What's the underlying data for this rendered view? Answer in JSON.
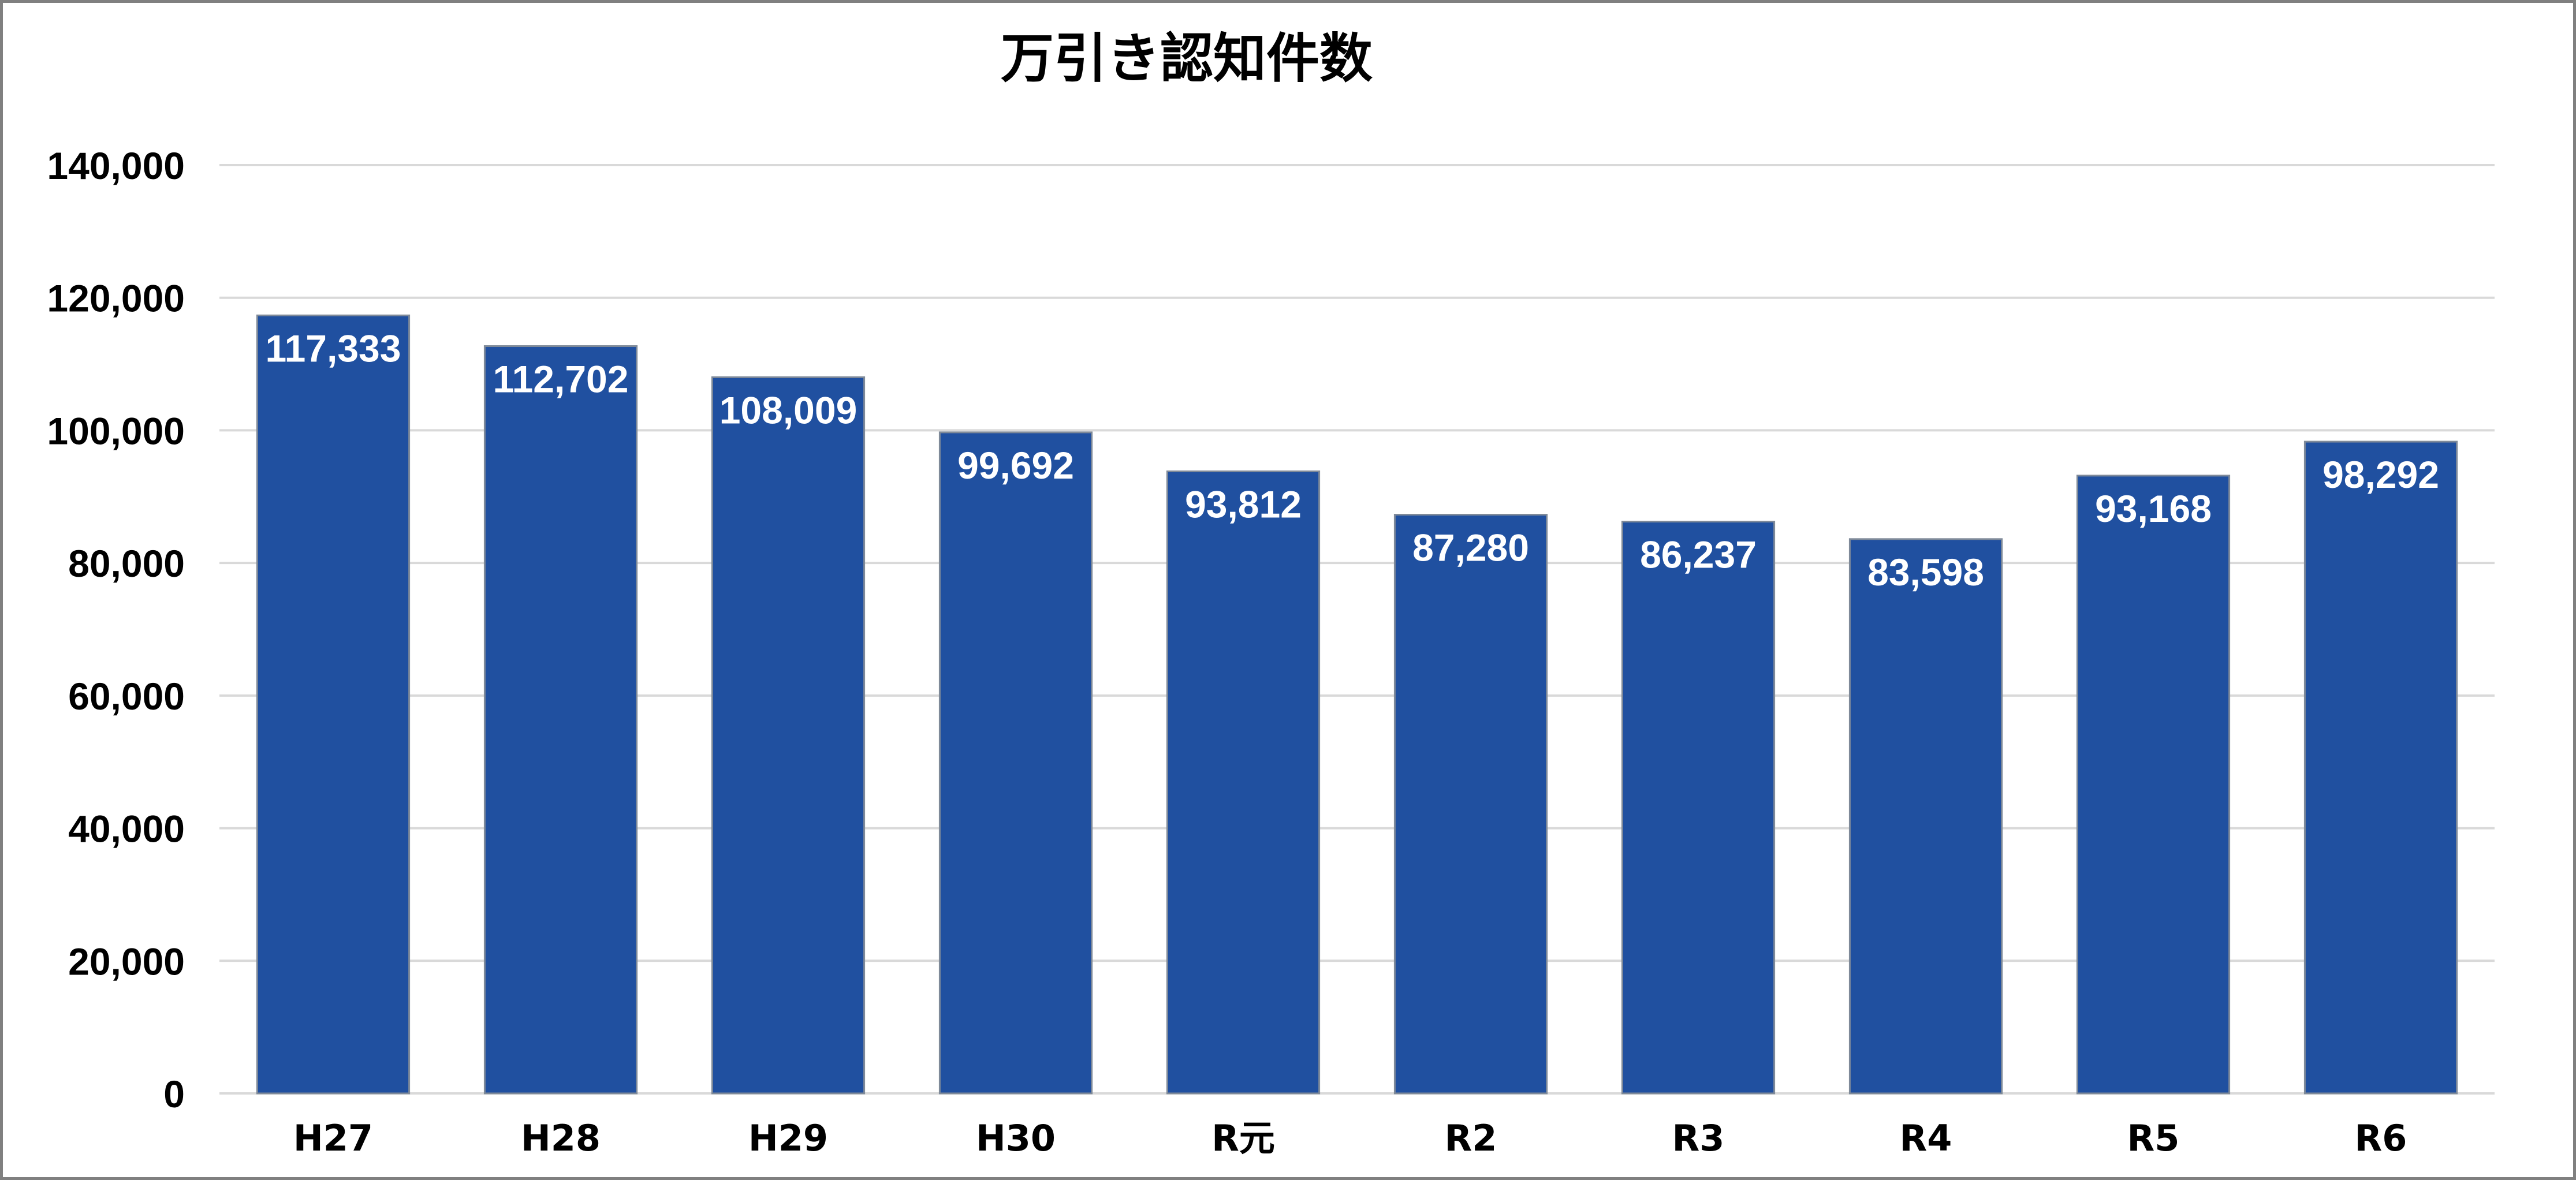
{
  "chart_data": {
    "type": "bar",
    "title": "万引き認知件数",
    "categories": [
      "H27",
      "H28",
      "H29",
      "H30",
      "R元",
      "R2",
      "R3",
      "R4",
      "R5",
      "R6"
    ],
    "values": [
      117333,
      112702,
      108009,
      99692,
      93812,
      87280,
      86237,
      83598,
      93168,
      98292
    ],
    "data_labels": [
      "117,333",
      "112,702",
      "108,009",
      "99,692",
      "93,812",
      "87,280",
      "86,237",
      "83,598",
      "93,168",
      "98,292"
    ],
    "ylim": [
      0,
      140000
    ],
    "yticks": [
      0,
      20000,
      40000,
      60000,
      80000,
      100000,
      120000,
      140000
    ],
    "ytick_labels": [
      "0",
      "20,000",
      "40,000",
      "60,000",
      "80,000",
      "100,000",
      "120,000",
      "140,000"
    ],
    "xlabel": "",
    "ylabel": "",
    "grid": true,
    "legend": "none",
    "colors": {
      "bar": "#2050A0",
      "bar_edge": "#7F8A99",
      "grid": "#D9D9D9"
    }
  }
}
